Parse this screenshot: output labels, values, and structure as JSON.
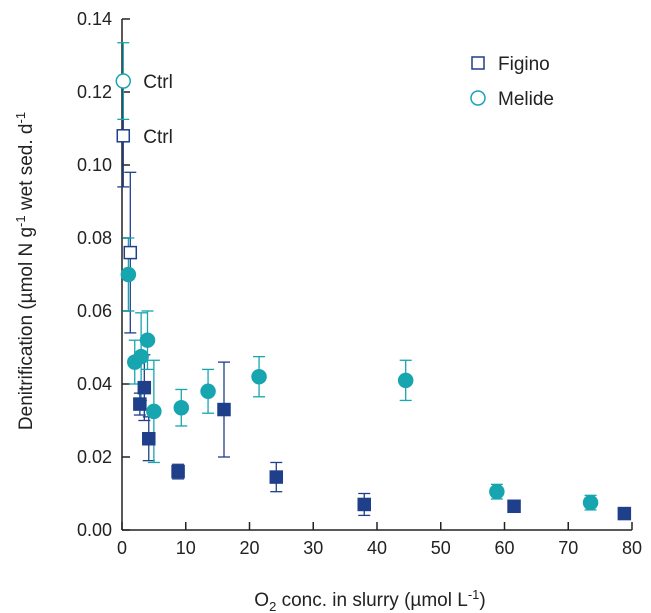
{
  "chart_data": {
    "type": "scatter",
    "xlabel": {
      "pre": "O",
      "sub": "2",
      "mid": " conc. in slurry (µmol L",
      "sup": "-1",
      "post": ")"
    },
    "ylabel": {
      "pre": "Denitrification (µmol N g",
      "sup1": "-1",
      "mid": " wet sed. d",
      "sup2": "-1"
    },
    "xlim": [
      0,
      80
    ],
    "ylim": [
      0,
      0.14
    ],
    "xticks": [
      0,
      10,
      20,
      30,
      40,
      50,
      60,
      70,
      80
    ],
    "yticks": [
      "0.00",
      "0.02",
      "0.04",
      "0.06",
      "0.08",
      "0.10",
      "0.12",
      "0.14"
    ],
    "grid": false,
    "legend_position": "top-right",
    "colors": {
      "figino": "#1f3f8a",
      "melide": "#17a5b0",
      "axis": "#222222"
    },
    "series": [
      {
        "name": "Figino",
        "marker": "square",
        "points": [
          {
            "x": 0.2,
            "y": 0.108,
            "err": 0.014,
            "open": true,
            "label": "Ctrl"
          },
          {
            "x": 1.3,
            "y": 0.076,
            "err": 0.022,
            "open": true
          },
          {
            "x": 2.8,
            "y": 0.0345,
            "err": 0.003
          },
          {
            "x": 3.5,
            "y": 0.039,
            "err": 0.009
          },
          {
            "x": 4.2,
            "y": 0.025,
            "err": 0.006
          },
          {
            "x": 8.8,
            "y": 0.016,
            "err": 0.002
          },
          {
            "x": 16.0,
            "y": 0.033,
            "err": 0.013
          },
          {
            "x": 24.2,
            "y": 0.0145,
            "err": 0.004
          },
          {
            "x": 38.0,
            "y": 0.007,
            "err": 0.003
          },
          {
            "x": 61.5,
            "y": 0.0065,
            "err": 0.0015
          },
          {
            "x": 78.8,
            "y": 0.0045,
            "err": 0.0015
          }
        ]
      },
      {
        "name": "Melide",
        "marker": "circle",
        "points": [
          {
            "x": 0.2,
            "y": 0.123,
            "err": 0.0105,
            "open": true,
            "label": "Ctrl"
          },
          {
            "x": 1.0,
            "y": 0.07,
            "err": 0.01
          },
          {
            "x": 2.0,
            "y": 0.046,
            "err": 0.006
          },
          {
            "x": 3.0,
            "y": 0.0475,
            "err": 0.012
          },
          {
            "x": 4.0,
            "y": 0.052,
            "err": 0.008
          },
          {
            "x": 5.0,
            "y": 0.0325,
            "err": 0.014
          },
          {
            "x": 9.3,
            "y": 0.0335,
            "err": 0.005
          },
          {
            "x": 13.5,
            "y": 0.038,
            "err": 0.006
          },
          {
            "x": 21.5,
            "y": 0.042,
            "err": 0.0055
          },
          {
            "x": 44.5,
            "y": 0.041,
            "err": 0.0055
          },
          {
            "x": 58.8,
            "y": 0.0105,
            "err": 0.002
          },
          {
            "x": 73.5,
            "y": 0.0075,
            "err": 0.002
          }
        ]
      }
    ]
  }
}
